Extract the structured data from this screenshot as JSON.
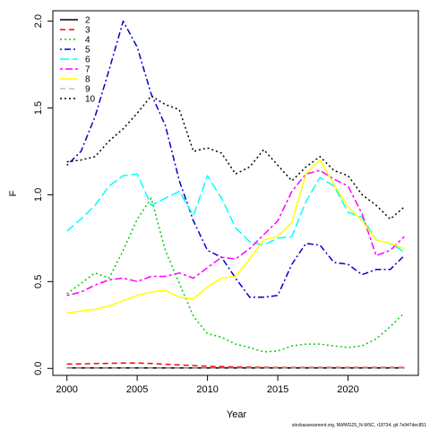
{
  "chart_data": {
    "type": "line",
    "xlabel": "Year",
    "ylabel": "F",
    "xlim": [
      1999,
      2025
    ],
    "ylim": [
      -0.04,
      2.06
    ],
    "xticks": [
      "2000",
      "2005",
      "2010",
      "2015",
      "2020"
    ],
    "yticks": [
      "0.0",
      "0.5",
      "1.0",
      "1.5",
      "2.0"
    ],
    "legend_position": "top-left",
    "x": [
      2000,
      2001,
      2002,
      2003,
      2004,
      2005,
      2006,
      2007,
      2008,
      2009,
      2010,
      2011,
      2012,
      2013,
      2014,
      2015,
      2016,
      2017,
      2018,
      2019,
      2020,
      2021,
      2022,
      2023,
      2024
    ],
    "series": [
      {
        "name": "2",
        "color": "#000000",
        "dash": "solid",
        "values": [
          0.003,
          0.003,
          0.003,
          0.003,
          0.003,
          0.003,
          0.003,
          0.003,
          0.003,
          0.003,
          0.003,
          0.003,
          0.003,
          0.003,
          0.003,
          0.003,
          0.003,
          0.003,
          0.003,
          0.003,
          0.003,
          0.003,
          0.003,
          0.003,
          0.003
        ]
      },
      {
        "name": "3",
        "color": "#ff0000",
        "dash": "dashed",
        "values": [
          0.025,
          0.026,
          0.028,
          0.029,
          0.031,
          0.031,
          0.028,
          0.024,
          0.02,
          0.016,
          0.012,
          0.01,
          0.008,
          0.007,
          0.006,
          0.005,
          0.005,
          0.005,
          0.005,
          0.005,
          0.005,
          0.005,
          0.005,
          0.005,
          0.005
        ]
      },
      {
        "name": "4",
        "color": "#00cd00",
        "dash": "dotted",
        "values": [
          0.43,
          0.49,
          0.55,
          0.52,
          0.68,
          0.86,
          0.98,
          0.68,
          0.49,
          0.3,
          0.2,
          0.18,
          0.14,
          0.12,
          0.095,
          0.1,
          0.13,
          0.14,
          0.14,
          0.13,
          0.12,
          0.13,
          0.17,
          0.24,
          0.32
        ]
      },
      {
        "name": "5",
        "color": "#0000cd",
        "dash": "dashdot",
        "values": [
          1.17,
          1.25,
          1.45,
          1.72,
          2.0,
          1.85,
          1.58,
          1.4,
          1.08,
          0.85,
          0.68,
          0.64,
          0.52,
          0.41,
          0.41,
          0.42,
          0.6,
          0.72,
          0.71,
          0.61,
          0.6,
          0.54,
          0.57,
          0.57,
          0.65
        ]
      },
      {
        "name": "6",
        "color": "#00ffff",
        "dash": "longdash",
        "values": [
          0.79,
          0.86,
          0.94,
          1.05,
          1.11,
          1.12,
          0.94,
          0.98,
          1.02,
          0.88,
          1.11,
          0.98,
          0.81,
          0.73,
          0.71,
          0.75,
          0.76,
          0.96,
          1.1,
          1.05,
          0.9,
          0.87,
          0.74,
          0.72,
          0.67
        ]
      },
      {
        "name": "7",
        "color": "#ff00ff",
        "dash": "twodash",
        "values": [
          0.42,
          0.44,
          0.48,
          0.51,
          0.52,
          0.5,
          0.53,
          0.53,
          0.55,
          0.52,
          0.58,
          0.64,
          0.63,
          0.69,
          0.77,
          0.85,
          1.02,
          1.12,
          1.14,
          1.09,
          1.05,
          0.89,
          0.65,
          0.68,
          0.76
        ]
      },
      {
        "name": "8",
        "color": "#ffff00",
        "dash": "solid",
        "values": [
          0.32,
          0.33,
          0.34,
          0.36,
          0.39,
          0.42,
          0.44,
          0.45,
          0.41,
          0.4,
          0.47,
          0.52,
          0.53,
          0.63,
          0.74,
          0.76,
          0.84,
          1.12,
          1.2,
          1.06,
          0.93,
          0.85,
          0.74,
          0.72,
          0.69
        ]
      },
      {
        "name": "9",
        "color": "#bebebe",
        "dash": "dashed",
        "values": [
          0.001,
          0.001,
          0.001,
          0.001,
          0.001,
          0.001,
          0.001,
          0.001,
          0.001,
          0.001,
          0.001,
          0.001,
          0.001,
          0.001,
          0.001,
          0.001,
          0.001,
          0.001,
          0.001,
          0.001,
          0.001,
          0.001,
          0.001,
          0.001,
          0.001
        ]
      },
      {
        "name": "10",
        "color": "#000000",
        "dash": "dotted",
        "values": [
          1.19,
          1.2,
          1.22,
          1.31,
          1.38,
          1.47,
          1.57,
          1.52,
          1.49,
          1.25,
          1.27,
          1.24,
          1.12,
          1.16,
          1.26,
          1.17,
          1.08,
          1.16,
          1.22,
          1.14,
          1.11,
          1.0,
          0.94,
          0.86,
          0.93
        ]
      }
    ]
  },
  "footnote": "stockassessment.org, NWWG25_N-WSC, r18734, git 7e947dec851"
}
